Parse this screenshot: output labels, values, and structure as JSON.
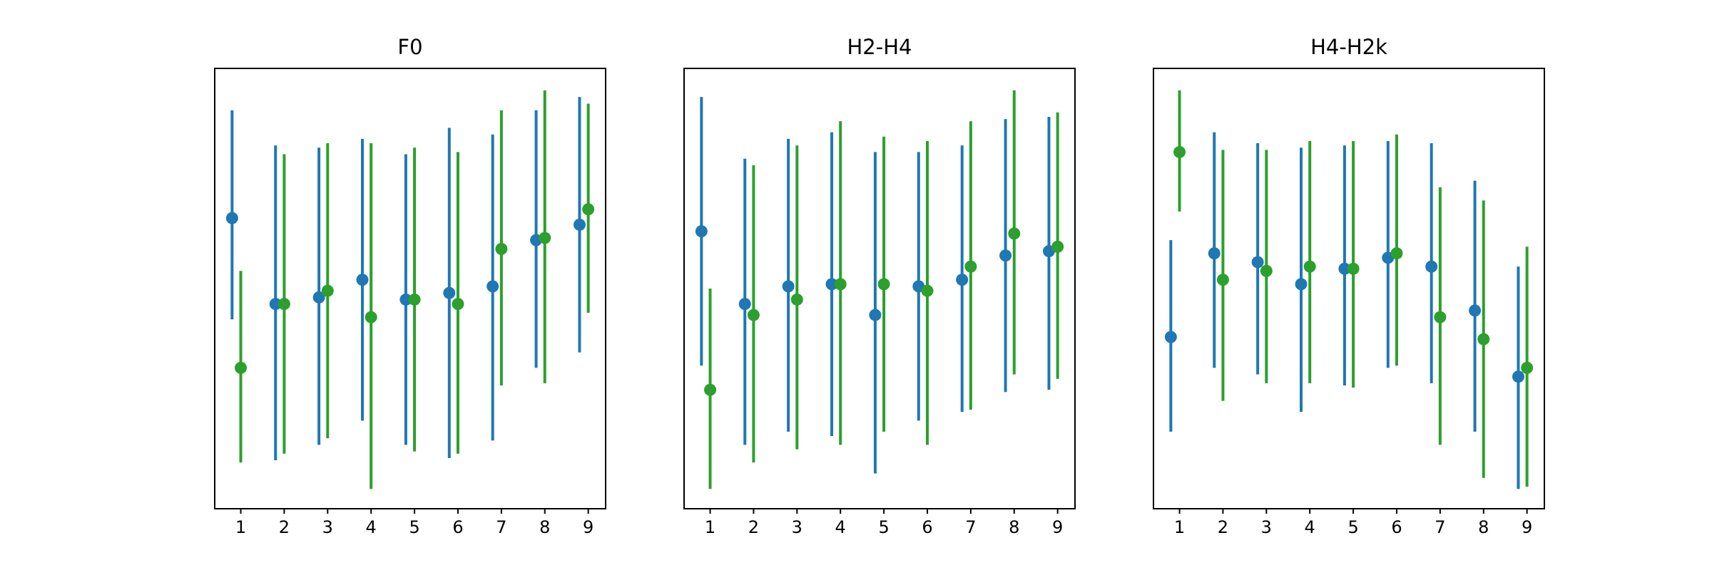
{
  "colors": {
    "series_a": "#1f77b4",
    "series_b": "#2ca02c"
  },
  "chart_data": [
    {
      "type": "errorbar",
      "title": "F0",
      "x": [
        1,
        2,
        3,
        4,
        5,
        6,
        7,
        8,
        9
      ],
      "xticklabels": [
        "1",
        "2",
        "3",
        "4",
        "5",
        "6",
        "7",
        "8",
        "9"
      ],
      "xlim": [
        0.4,
        9.4
      ],
      "ylim": [
        0,
        1
      ],
      "yticks_shown": false,
      "series": [
        {
          "color": "series_a",
          "x_offset": -0.2,
          "values": [
            0.66,
            0.465,
            0.48,
            0.52,
            0.475,
            0.49,
            0.505,
            0.61,
            0.645
          ],
          "lower": [
            0.43,
            0.11,
            0.145,
            0.2,
            0.145,
            0.115,
            0.155,
            0.32,
            0.355
          ],
          "upper": [
            0.905,
            0.825,
            0.82,
            0.84,
            0.805,
            0.865,
            0.85,
            0.905,
            0.935
          ]
        },
        {
          "color": "series_b",
          "x_offset": 0.0,
          "values": [
            0.32,
            0.465,
            0.495,
            0.435,
            0.475,
            0.465,
            0.59,
            0.615,
            0.68
          ],
          "lower": [
            0.105,
            0.125,
            0.16,
            0.045,
            0.13,
            0.125,
            0.28,
            0.285,
            0.445
          ],
          "upper": [
            0.54,
            0.805,
            0.83,
            0.83,
            0.82,
            0.81,
            0.905,
            0.95,
            0.92
          ]
        }
      ]
    },
    {
      "type": "errorbar",
      "title": "H2-H4",
      "x": [
        1,
        2,
        3,
        4,
        5,
        6,
        7,
        8,
        9
      ],
      "xticklabels": [
        "1",
        "2",
        "3",
        "4",
        "5",
        "6",
        "7",
        "8",
        "9"
      ],
      "xlim": [
        0.4,
        9.4
      ],
      "ylim": [
        0,
        1
      ],
      "yticks_shown": false,
      "series": [
        {
          "color": "series_a",
          "x_offset": -0.2,
          "values": [
            0.63,
            0.465,
            0.505,
            0.51,
            0.44,
            0.505,
            0.52,
            0.575,
            0.585
          ],
          "lower": [
            0.325,
            0.145,
            0.175,
            0.165,
            0.08,
            0.2,
            0.22,
            0.265,
            0.27
          ],
          "upper": [
            0.935,
            0.795,
            0.84,
            0.855,
            0.81,
            0.81,
            0.825,
            0.885,
            0.89
          ]
        },
        {
          "color": "series_b",
          "x_offset": 0.0,
          "values": [
            0.27,
            0.44,
            0.475,
            0.51,
            0.51,
            0.495,
            0.55,
            0.625,
            0.595
          ],
          "lower": [
            0.045,
            0.105,
            0.135,
            0.145,
            0.175,
            0.145,
            0.225,
            0.305,
            0.295
          ],
          "upper": [
            0.5,
            0.78,
            0.825,
            0.88,
            0.845,
            0.835,
            0.88,
            0.95,
            0.9
          ]
        }
      ]
    },
    {
      "type": "errorbar",
      "title": "H4-H2k",
      "x": [
        1,
        2,
        3,
        4,
        5,
        6,
        7,
        8,
        9
      ],
      "xticklabels": [
        "1",
        "2",
        "3",
        "4",
        "5",
        "6",
        "7",
        "8",
        "9"
      ],
      "xlim": [
        0.4,
        9.4
      ],
      "ylim": [
        0,
        1
      ],
      "yticks_shown": false,
      "series": [
        {
          "color": "series_a",
          "x_offset": -0.2,
          "values": [
            0.39,
            0.58,
            0.56,
            0.51,
            0.545,
            0.57,
            0.55,
            0.45,
            0.3
          ],
          "lower": [
            0.175,
            0.32,
            0.305,
            0.22,
            0.28,
            0.32,
            0.285,
            0.175,
            0.045
          ],
          "upper": [
            0.61,
            0.855,
            0.83,
            0.82,
            0.825,
            0.835,
            0.83,
            0.745,
            0.55
          ]
        },
        {
          "color": "series_b",
          "x_offset": 0.0,
          "values": [
            0.81,
            0.52,
            0.54,
            0.55,
            0.545,
            0.58,
            0.435,
            0.385,
            0.32
          ],
          "lower": [
            0.675,
            0.245,
            0.285,
            0.285,
            0.275,
            0.325,
            0.145,
            0.07,
            0.05
          ],
          "upper": [
            0.95,
            0.815,
            0.815,
            0.835,
            0.835,
            0.85,
            0.73,
            0.7,
            0.595
          ]
        }
      ]
    }
  ]
}
